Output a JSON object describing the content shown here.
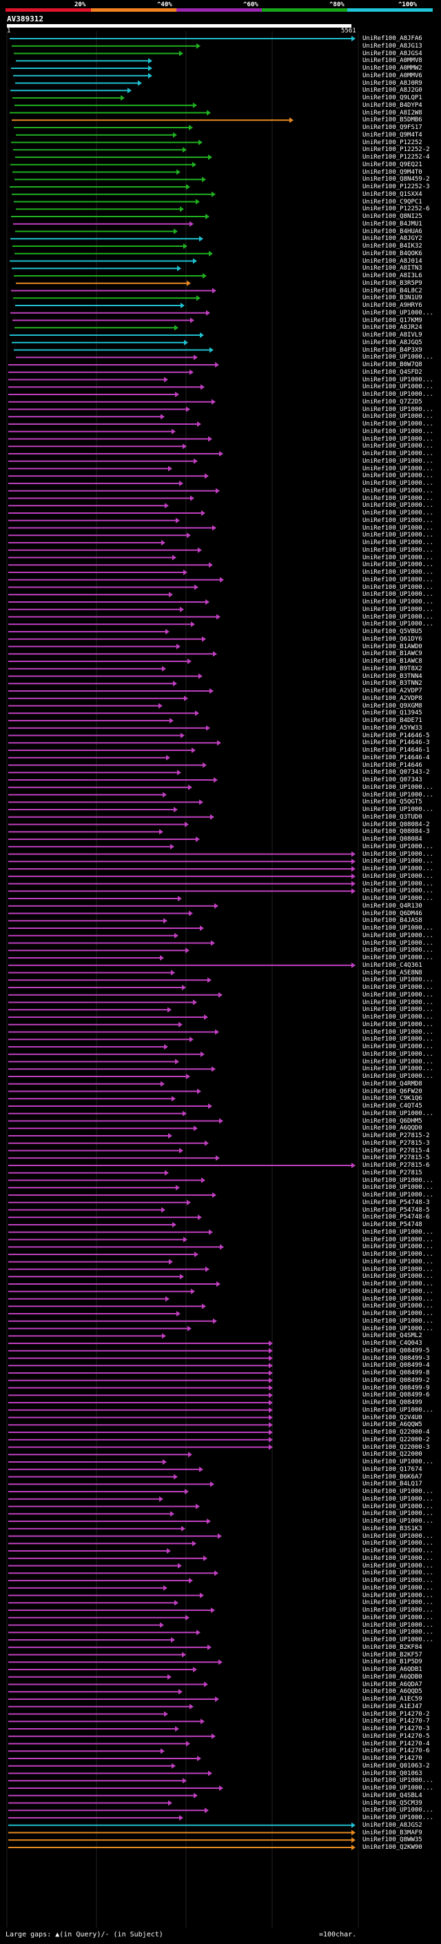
{
  "scale": {
    "ticks": [
      "20%",
      "^40%",
      "^60%",
      "^80%",
      "^100%"
    ],
    "colors": [
      "#e0152b",
      "#f58220",
      "#9c27b0",
      "#18a61a",
      "#21c6d8"
    ]
  },
  "query": {
    "name": "AV389312",
    "start": "1",
    "end": "5561"
  },
  "colors": {
    "magenta": "#c040c0",
    "green": "#20b020",
    "cyan": "#20c0d0",
    "orange": "#e88a20"
  },
  "hits": [
    "UniRef100_A8JFA6",
    "UniRef100_A8JG13",
    "UniRef100_A8JGS4",
    "UniRef100_A0MMV8",
    "UniRef100_A0MMW2",
    "UniRef100_A0MMV6",
    "UniRef100_A8J0R9",
    "UniRef100_A8J2G0",
    "UniRef100_Q9LQP1",
    "UniRef100_B4DYP4",
    "UniRef100_A8I2W8",
    "UniRef100_B5DMB6",
    "UniRef100_Q9FS17",
    "UniRef100_Q9M4T4",
    "UniRef100_P12252",
    "UniRef100_P12252-2",
    "UniRef100_P12252-4",
    "UniRef100_Q9EQ21",
    "UniRef100_Q9M4T0",
    "UniRef100_Q8N459-2",
    "UniRef100_P12252-3",
    "UniRef100_Q1SXX4",
    "UniRef100_C9QPC1",
    "UniRef100_P12252-6",
    "UniRef100_Q8NI25",
    "UniRef100_B4JMU1",
    "UniRef100_B4HUA6",
    "UniRef100_A8JGY2",
    "UniRef100_B4IK32",
    "UniRef100_B4QOK6",
    "UniRef100_A8J014",
    "UniRef100_A8ITN3",
    "UniRef100_A8I3L6",
    "UniRef100_B3R5P9",
    "UniRef100_B4L8C2",
    "UniRef100_B3N1U9",
    "UniRef100_A9HRY6",
    "UniRef100_UP1000...",
    "UniRef100_Q17KM9",
    "UniRef100_A8JR24",
    "UniRef100_A8IVL9",
    "UniRef100_A8JGQ5",
    "UniRef100_B4P3X9",
    "UniRef100_UP1000...",
    "UniRef100_B0W7Q8",
    "UniRef100_Q4SFD2",
    "UniRef100_UP1000...",
    "UniRef100_UP1000...",
    "UniRef100_UP1000...",
    "UniRef100_Q7Z2D5",
    "UniRef100_UP1000...",
    "UniRef100_UP1000...",
    "UniRef100_UP1000...",
    "UniRef100_UP1000...",
    "UniRef100_UP1000...",
    "UniRef100_UP1000...",
    "UniRef100_UP1000...",
    "UniRef100_UP1000...",
    "UniRef100_UP1000...",
    "UniRef100_UP1000...",
    "UniRef100_UP1000...",
    "UniRef100_UP1000...",
    "UniRef100_UP1000...",
    "UniRef100_UP1000...",
    "UniRef100_UP1000...",
    "UniRef100_UP1000...",
    "UniRef100_UP1000...",
    "UniRef100_UP1000...",
    "UniRef100_UP1000...",
    "UniRef100_UP1000...",
    "UniRef100_UP1000...",
    "UniRef100_UP1000...",
    "UniRef100_UP1000...",
    "UniRef100_UP1000...",
    "UniRef100_UP1000...",
    "UniRef100_UP1000...",
    "UniRef100_UP1000...",
    "UniRef100_UP1000...",
    "UniRef100_UP1000...",
    "UniRef100_UP1000...",
    "UniRef100_Q5VBU5",
    "UniRef100_Q61DY6",
    "UniRef100_B1AWD0",
    "UniRef100_B1AWC9",
    "UniRef100_B1AWC8",
    "UniRef100_B9T8X2",
    "UniRef100_B3TNN4",
    "UniRef100_B3TNN2",
    "UniRef100_A2VDP7",
    "UniRef100_A2VDP8",
    "UniRef100_Q9XGM8",
    "UniRef100_Q13945",
    "UniRef100_B4DE71",
    "UniRef100_A5YW33",
    "UniRef100_P14646-5",
    "UniRef100_P14646-3",
    "UniRef100_P14646-1",
    "UniRef100_P14646-4",
    "UniRef100_P14646",
    "UniRef100_Q07343-2",
    "UniRef100_Q07343",
    "UniRef100_UP1000...",
    "UniRef100_UP1000...",
    "UniRef100_Q5QGT5",
    "UniRef100_UP1000...",
    "UniRef100_Q3TUD0",
    "UniRef100_Q08084-2",
    "UniRef100_Q08084-3",
    "UniRef100_Q08084",
    "UniRef100_UP1000...",
    "UniRef100_UP1000...",
    "UniRef100_UP1000...",
    "UniRef100_UP1000...",
    "UniRef100_UP1000...",
    "UniRef100_UP1000...",
    "UniRef100_UP1000...",
    "UniRef100_UP1000...",
    "UniRef100_Q4R130",
    "UniRef100_Q6DM46",
    "UniRef100_B4JAS8",
    "UniRef100_UP1000...",
    "UniRef100_UP1000...",
    "UniRef100_UP1000...",
    "UniRef100_UP1000...",
    "UniRef100_UP1000...",
    "UniRef100_C4Q361",
    "UniRef100_A5E8N8",
    "UniRef100_UP1000...",
    "UniRef100_UP1000...",
    "UniRef100_UP1000...",
    "UniRef100_UP1000...",
    "UniRef100_UP1000...",
    "UniRef100_UP1000...",
    "UniRef100_UP1000...",
    "UniRef100_UP1000...",
    "UniRef100_UP1000...",
    "UniRef100_UP1000...",
    "UniRef100_UP1000...",
    "UniRef100_UP1000...",
    "UniRef100_UP1000...",
    "UniRef100_UP1000...",
    "UniRef100_Q4RMD8",
    "UniRef100_Q6FW20",
    "UniRef100_C9K1Q6",
    "UniRef100_C4QT45",
    "UniRef100_UP1000...",
    "UniRef100_Q6DHM5",
    "UniRef100_A6QQD0",
    "UniRef100_P27815-2",
    "UniRef100_P27815-3",
    "UniRef100_P27815-4",
    "UniRef100_P27815-5",
    "UniRef100_P27815-6",
    "UniRef100_P27815",
    "UniRef100_UP1000...",
    "UniRef100_UP1000...",
    "UniRef100_UP1000...",
    "UniRef100_P54748-3",
    "UniRef100_P54748-5",
    "UniRef100_P54748-6",
    "UniRef100_P54748",
    "UniRef100_UP1000...",
    "UniRef100_UP1000...",
    "UniRef100_UP1000...",
    "UniRef100_UP1000...",
    "UniRef100_UP1000...",
    "UniRef100_UP1000...",
    "UniRef100_UP1000...",
    "UniRef100_UP1000...",
    "UniRef100_UP1000...",
    "UniRef100_UP1000...",
    "UniRef100_UP1000...",
    "UniRef100_UP1000...",
    "UniRef100_UP1000...",
    "UniRef100_UP1000...",
    "UniRef100_Q4SML2",
    "UniRef100_C4Q043",
    "UniRef100_Q08499-5",
    "UniRef100_Q08499-3",
    "UniRef100_Q08499-4",
    "UniRef100_Q08499-8",
    "UniRef100_Q08499-2",
    "UniRef100_Q08499-9",
    "UniRef100_Q08499-6",
    "UniRef100_Q08499",
    "UniRef100_UP1000...",
    "UniRef100_Q2V4U0",
    "UniRef100_A6QQW5",
    "UniRef100_Q22000-4",
    "UniRef100_Q22000-2",
    "UniRef100_Q22000-3",
    "UniRef100_Q22000",
    "UniRef100_UP1000...",
    "UniRef100_Q17674",
    "UniRef100_B6K6A7",
    "UniRef100_B4LQ17",
    "UniRef100_UP1000...",
    "UniRef100_UP1000...",
    "UniRef100_UP1000...",
    "UniRef100_UP1000...",
    "UniRef100_UP1000...",
    "UniRef100_B3S1K3",
    "UniRef100_UP1000...",
    "UniRef100_UP1000...",
    "UniRef100_UP1000...",
    "UniRef100_UP1000...",
    "UniRef100_UP1000...",
    "UniRef100_UP1000...",
    "UniRef100_UP1000...",
    "UniRef100_UP1000...",
    "UniRef100_UP1000...",
    "UniRef100_UP1000...",
    "UniRef100_UP1000...",
    "UniRef100_UP1000...",
    "UniRef100_UP1000...",
    "UniRef100_UP1000...",
    "UniRef100_UP1000...",
    "UniRef100_B2KF84",
    "UniRef100_B2KF57",
    "UniRef100_B1P5D9",
    "UniRef100_A6QDB1",
    "UniRef100_A6QDB0",
    "UniRef100_A6QDA7",
    "UniRef100_A6QQD5",
    "UniRef100_A1EC59",
    "UniRef100_A1EJ47",
    "UniRef100_P14270-2",
    "UniRef100_P14270-7",
    "UniRef100_P14270-3",
    "UniRef100_P14270-5",
    "UniRef100_P14270-4",
    "UniRef100_P14270-6",
    "UniRef100_P14270",
    "UniRef100_Q01063-2",
    "UniRef100_Q01063",
    "UniRef100_UP1000...",
    "UniRef100_UP1000...",
    "UniRef100_Q4SBL4",
    "UniRef100_Q5CM39",
    "UniRef100_UP1000...",
    "UniRef100_UP1000...",
    "UniRef100_A8JGS2",
    "UniRef100_B3MAF9",
    "UniRef100_Q8WW35",
    "UniRef100_Q2KW90"
  ],
  "legend": {
    "text": "Large gaps: ▲(in Query)/- (in Subject)",
    "scale_text": "=100char."
  }
}
